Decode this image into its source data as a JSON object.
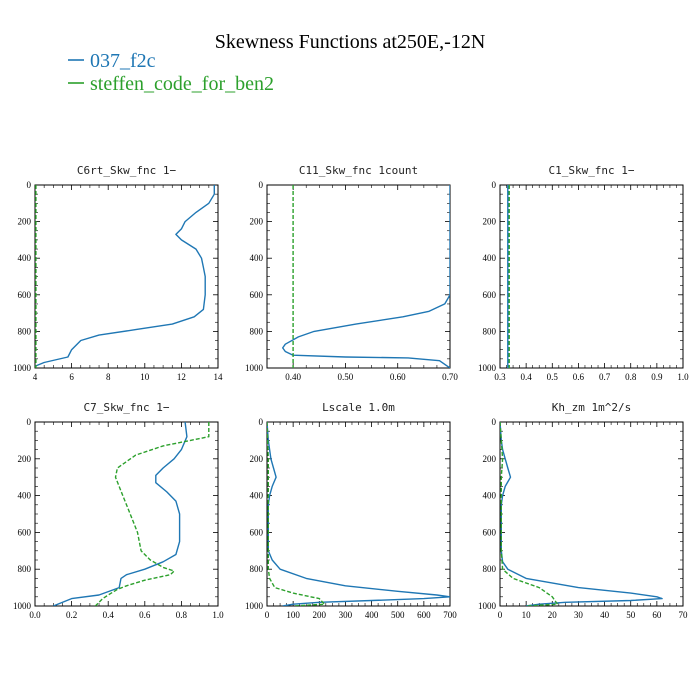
{
  "figure": {
    "title": "Skewness Functions at250E,-12N",
    "legend": [
      {
        "label": "037_f2c",
        "color": "#1f77b4"
      },
      {
        "label": "steffen_code_for_ben2",
        "color": "#2ca02c"
      }
    ]
  },
  "chart_data": [
    {
      "type": "line",
      "title": "C6rt_Skw_fnc   1−",
      "xlim": [
        4,
        14
      ],
      "ylim": [
        0,
        1000
      ],
      "xticks": [
        4,
        6,
        8,
        10,
        12,
        14
      ],
      "xtick_labels": [
        "4",
        "6",
        "8",
        "10",
        "12",
        "14"
      ],
      "yticks": [
        0,
        200,
        400,
        600,
        800,
        1000
      ],
      "ytick_labels": [
        "0",
        "200",
        "400",
        "600",
        "800",
        "1000"
      ],
      "series": [
        {
          "name": "037_f2c",
          "color": "#1f77b4",
          "style": "solid",
          "points": [
            [
              13.8,
              0
            ],
            [
              13.8,
              50
            ],
            [
              13.5,
              100
            ],
            [
              12.8,
              150
            ],
            [
              12.2,
              200
            ],
            [
              12.0,
              240
            ],
            [
              11.7,
              270
            ],
            [
              12.0,
              300
            ],
            [
              12.8,
              350
            ],
            [
              13.1,
              400
            ],
            [
              13.2,
              450
            ],
            [
              13.3,
              500
            ],
            [
              13.3,
              600
            ],
            [
              13.2,
              680
            ],
            [
              12.7,
              720
            ],
            [
              11.5,
              760
            ],
            [
              9.5,
              790
            ],
            [
              7.5,
              820
            ],
            [
              6.5,
              850
            ],
            [
              6.0,
              900
            ],
            [
              5.8,
              940
            ],
            [
              4.5,
              970
            ],
            [
              4.0,
              990
            ]
          ]
        },
        {
          "name": "steffen_code_for_ben2",
          "color": "#2ca02c",
          "style": "dashed",
          "points": [
            [
              4.05,
              0
            ],
            [
              4.05,
              1000
            ]
          ]
        }
      ]
    },
    {
      "type": "line",
      "title": "C11_Skw_fnc   1count",
      "xlim": [
        0.35,
        0.7
      ],
      "ylim": [
        0,
        1000
      ],
      "xticks": [
        0.4,
        0.5,
        0.6,
        0.7
      ],
      "xtick_labels": [
        "0.40",
        "0.50",
        "0.60",
        "0.70"
      ],
      "yticks": [
        0,
        200,
        400,
        600,
        800,
        1000
      ],
      "ytick_labels": [
        "0",
        "200",
        "400",
        "600",
        "800",
        "1000"
      ],
      "series": [
        {
          "name": "037_f2c",
          "color": "#1f77b4",
          "style": "solid",
          "points": [
            [
              0.7,
              0
            ],
            [
              0.7,
              380
            ],
            [
              0.7,
              600
            ],
            [
              0.69,
              650
            ],
            [
              0.66,
              690
            ],
            [
              0.61,
              720
            ],
            [
              0.52,
              760
            ],
            [
              0.44,
              800
            ],
            [
              0.41,
              830
            ],
            [
              0.385,
              870
            ],
            [
              0.38,
              890
            ],
            [
              0.385,
              910
            ],
            [
              0.4,
              930
            ],
            [
              0.5,
              940
            ],
            [
              0.62,
              945
            ],
            [
              0.68,
              960
            ],
            [
              0.7,
              1000
            ]
          ]
        },
        {
          "name": "steffen_code_for_ben2",
          "color": "#2ca02c",
          "style": "dashed",
          "points": [
            [
              0.4,
              0
            ],
            [
              0.4,
              1000
            ]
          ]
        }
      ]
    },
    {
      "type": "line",
      "title": "C1_Skw_fnc   1−",
      "xlim": [
        0.3,
        1.0
      ],
      "ylim": [
        0,
        1000
      ],
      "xticks": [
        0.3,
        0.4,
        0.5,
        0.6,
        0.7,
        0.8,
        0.9,
        1.0
      ],
      "xtick_labels": [
        "0.3",
        "0.4",
        "0.5",
        "0.6",
        "0.7",
        "0.8",
        "0.9",
        "1.0"
      ],
      "yticks": [
        0,
        200,
        400,
        600,
        800,
        1000
      ],
      "ytick_labels": [
        "0",
        "200",
        "400",
        "600",
        "800",
        "1000"
      ],
      "series": [
        {
          "name": "037_f2c",
          "color": "#1f77b4",
          "style": "solid",
          "points": [
            [
              0.33,
              0
            ],
            [
              0.33,
              1000
            ]
          ]
        },
        {
          "name": "steffen_code_for_ben2",
          "color": "#2ca02c",
          "style": "dashed",
          "points": [
            [
              0.335,
              0
            ],
            [
              0.335,
              1000
            ]
          ]
        }
      ]
    },
    {
      "type": "line",
      "title": "C7_Skw_fnc   1−",
      "xlim": [
        0.0,
        1.0
      ],
      "ylim": [
        0,
        1000
      ],
      "xticks": [
        0.0,
        0.2,
        0.4,
        0.6,
        0.8,
        1.0
      ],
      "xtick_labels": [
        "0.0",
        "0.2",
        "0.4",
        "0.6",
        "0.8",
        "1.0"
      ],
      "yticks": [
        0,
        200,
        400,
        600,
        800,
        1000
      ],
      "ytick_labels": [
        "0",
        "200",
        "400",
        "600",
        "800",
        "1000"
      ],
      "series": [
        {
          "name": "037_f2c",
          "color": "#1f77b4",
          "style": "solid",
          "points": [
            [
              0.82,
              0
            ],
            [
              0.83,
              80
            ],
            [
              0.8,
              150
            ],
            [
              0.76,
              200
            ],
            [
              0.7,
              250
            ],
            [
              0.66,
              290
            ],
            [
              0.66,
              330
            ],
            [
              0.72,
              380
            ],
            [
              0.77,
              430
            ],
            [
              0.79,
              500
            ],
            [
              0.79,
              650
            ],
            [
              0.77,
              720
            ],
            [
              0.7,
              760
            ],
            [
              0.6,
              800
            ],
            [
              0.5,
              830
            ],
            [
              0.47,
              850
            ],
            [
              0.46,
              900
            ],
            [
              0.35,
              940
            ],
            [
              0.2,
              960
            ],
            [
              0.1,
              1000
            ]
          ]
        },
        {
          "name": "steffen_code_for_ben2",
          "color": "#2ca02c",
          "style": "dashed",
          "points": [
            [
              0.95,
              0
            ],
            [
              0.95,
              80
            ],
            [
              0.85,
              100
            ],
            [
              0.7,
              130
            ],
            [
              0.55,
              180
            ],
            [
              0.45,
              250
            ],
            [
              0.44,
              300
            ],
            [
              0.48,
              400
            ],
            [
              0.52,
              500
            ],
            [
              0.56,
              600
            ],
            [
              0.58,
              700
            ],
            [
              0.63,
              750
            ],
            [
              0.7,
              790
            ],
            [
              0.76,
              810
            ],
            [
              0.74,
              830
            ],
            [
              0.6,
              860
            ],
            [
              0.5,
              890
            ],
            [
              0.45,
              910
            ],
            [
              0.4,
              940
            ],
            [
              0.37,
              960
            ],
            [
              0.33,
              1000
            ]
          ]
        }
      ]
    },
    {
      "type": "line",
      "title": "Lscale   1.0m",
      "xlim": [
        0,
        700
      ],
      "ylim": [
        0,
        1000
      ],
      "xticks": [
        0,
        100,
        200,
        300,
        400,
        500,
        600,
        700
      ],
      "xtick_labels": [
        "0",
        "100",
        "200",
        "300",
        "400",
        "500",
        "600",
        "700"
      ],
      "yticks": [
        0,
        200,
        400,
        600,
        800,
        1000
      ],
      "ytick_labels": [
        "0",
        "200",
        "400",
        "600",
        "800",
        "1000"
      ],
      "series": [
        {
          "name": "037_f2c",
          "color": "#1f77b4",
          "style": "solid",
          "points": [
            [
              0,
              0
            ],
            [
              5,
              100
            ],
            [
              10,
              150
            ],
            [
              15,
              200
            ],
            [
              25,
              250
            ],
            [
              35,
              300
            ],
            [
              20,
              350
            ],
            [
              10,
              400
            ],
            [
              5,
              450
            ],
            [
              5,
              500
            ],
            [
              5,
              600
            ],
            [
              5,
              700
            ],
            [
              20,
              750
            ],
            [
              50,
              800
            ],
            [
              150,
              850
            ],
            [
              300,
              890
            ],
            [
              500,
              920
            ],
            [
              650,
              940
            ],
            [
              700,
              950
            ],
            [
              600,
              960
            ],
            [
              400,
              970
            ],
            [
              200,
              980
            ],
            [
              100,
              990
            ],
            [
              60,
              1000
            ]
          ]
        },
        {
          "name": "steffen_code_for_ben2",
          "color": "#2ca02c",
          "style": "dashed",
          "points": [
            [
              0,
              0
            ],
            [
              5,
              200
            ],
            [
              5,
              400
            ],
            [
              5,
              600
            ],
            [
              5,
              700
            ],
            [
              5,
              800
            ],
            [
              10,
              850
            ],
            [
              30,
              900
            ],
            [
              100,
              930
            ],
            [
              200,
              960
            ],
            [
              220,
              990
            ],
            [
              100,
              1000
            ]
          ]
        }
      ]
    },
    {
      "type": "line",
      "title": "Kh_zm   1m^2/s",
      "xlim": [
        0,
        70
      ],
      "ylim": [
        0,
        1000
      ],
      "xticks": [
        0,
        10,
        20,
        30,
        40,
        50,
        60,
        70
      ],
      "xtick_labels": [
        "0",
        "10",
        "20",
        "30",
        "40",
        "50",
        "60",
        "70"
      ],
      "yticks": [
        0,
        200,
        400,
        600,
        800,
        1000
      ],
      "ytick_labels": [
        "0",
        "200",
        "400",
        "600",
        "800",
        "1000"
      ],
      "series": [
        {
          "name": "037_f2c",
          "color": "#1f77b4",
          "style": "solid",
          "points": [
            [
              0,
              0
            ],
            [
              0.5,
              100
            ],
            [
              1,
              150
            ],
            [
              2,
              200
            ],
            [
              3,
              250
            ],
            [
              4,
              300
            ],
            [
              2,
              350
            ],
            [
              1,
              400
            ],
            [
              0.5,
              450
            ],
            [
              0.5,
              600
            ],
            [
              0.5,
              700
            ],
            [
              1,
              760
            ],
            [
              3,
              800
            ],
            [
              10,
              850
            ],
            [
              30,
              900
            ],
            [
              50,
              930
            ],
            [
              60,
              950
            ],
            [
              62,
              960
            ],
            [
              50,
              970
            ],
            [
              25,
              980
            ],
            [
              15,
              990
            ],
            [
              10,
              1000
            ]
          ]
        },
        {
          "name": "steffen_code_for_ben2",
          "color": "#2ca02c",
          "style": "dashed",
          "points": [
            [
              0,
              0
            ],
            [
              1,
              200
            ],
            [
              0.5,
              300
            ],
            [
              0.5,
              500
            ],
            [
              0.5,
              700
            ],
            [
              1,
              800
            ],
            [
              5,
              850
            ],
            [
              15,
              900
            ],
            [
              20,
              950
            ],
            [
              22,
              990
            ],
            [
              10,
              1000
            ]
          ]
        }
      ]
    }
  ]
}
